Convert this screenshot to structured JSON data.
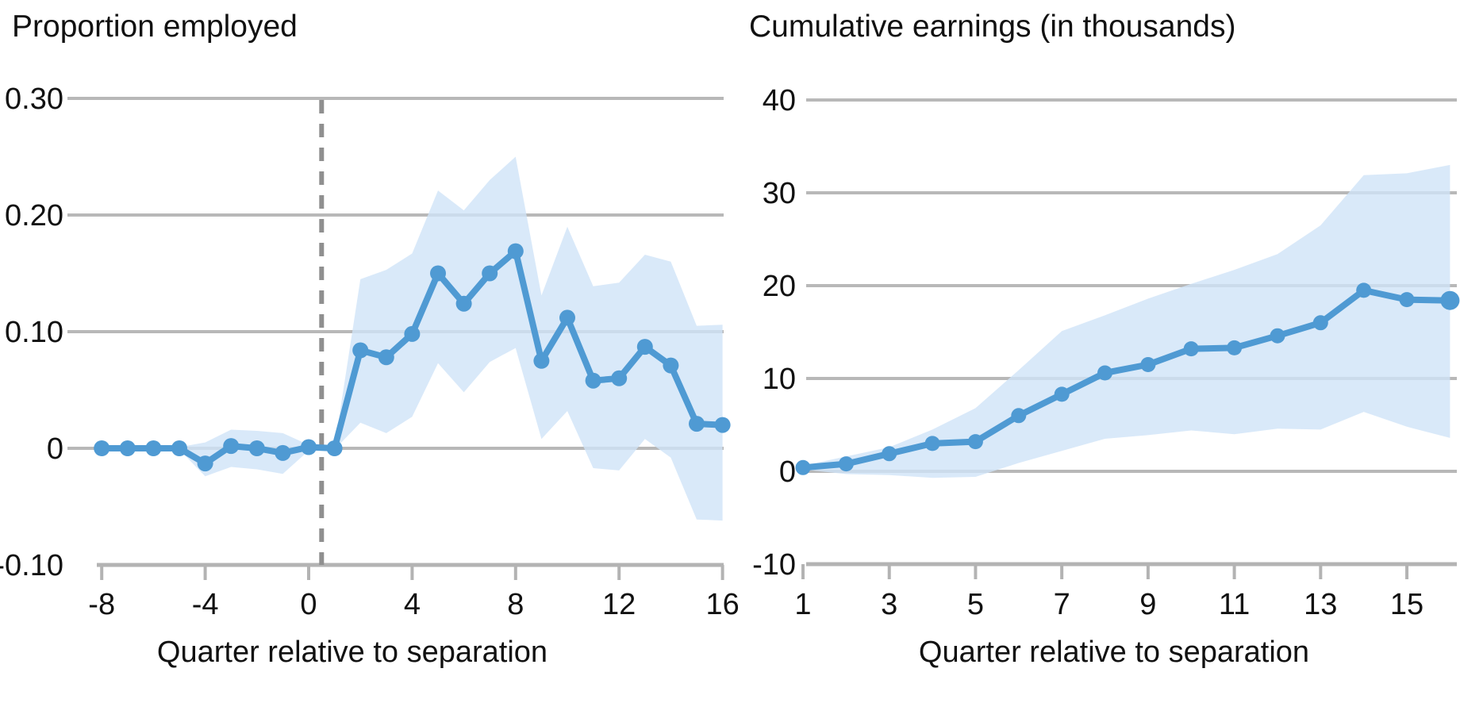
{
  "figure": {
    "background": "#ffffff"
  },
  "colors": {
    "line": "#4f9ad3",
    "marker": "#4f9ad3",
    "band": "#cfe4f7",
    "band_opacity": 0.8,
    "grid": "#b8b8b8",
    "axis": "#b3b3b3",
    "dashed": "#8f8f8f",
    "text": "#111111"
  },
  "chart_data": [
    {
      "type": "line",
      "title": "Proportion employed",
      "xlabel": "Quarter relative to separation",
      "legend": null,
      "grid": true,
      "ylim": [
        -0.1,
        0.3
      ],
      "xlim": [
        -9.3,
        16.1
      ],
      "x": [
        -8,
        -7,
        -6,
        -5,
        -4,
        -3,
        -2,
        -1,
        0,
        1,
        2,
        3,
        4,
        5,
        6,
        7,
        8,
        9,
        10,
        11,
        12,
        13,
        14,
        15,
        16
      ],
      "line": [
        0.0,
        0.0,
        0.0,
        0.0,
        -0.013,
        0.002,
        0.0,
        -0.004,
        0.001,
        0.0,
        0.084,
        0.078,
        0.098,
        0.15,
        0.124,
        0.15,
        0.169,
        0.075,
        0.112,
        0.058,
        0.06,
        0.087,
        0.071,
        0.021,
        0.02
      ],
      "band_upper": [
        0.0,
        0.0,
        0.0,
        0.001,
        0.005,
        0.016,
        0.015,
        0.013,
        0.003,
        0.001,
        0.145,
        0.153,
        0.167,
        0.221,
        0.204,
        0.23,
        0.25,
        0.131,
        0.19,
        0.139,
        0.142,
        0.166,
        0.16,
        0.105,
        0.106
      ],
      "band_lower": [
        0.0,
        0.0,
        0.0,
        -0.001,
        -0.024,
        -0.016,
        -0.018,
        -0.022,
        -0.002,
        -0.001,
        0.022,
        0.013,
        0.027,
        0.073,
        0.048,
        0.074,
        0.086,
        0.008,
        0.032,
        -0.017,
        -0.019,
        0.008,
        -0.008,
        -0.061,
        -0.062
      ],
      "vline_at": 0.5,
      "yticks": [
        {
          "v": 0.3,
          "label": "0.30"
        },
        {
          "v": 0.2,
          "label": "0.20"
        },
        {
          "v": 0.1,
          "label": "0.10"
        },
        {
          "v": 0.0,
          "label": "0"
        },
        {
          "v": -0.1,
          "label": "-0.10"
        }
      ],
      "xticks": [
        {
          "q": -8,
          "label": "-8"
        },
        {
          "q": -4,
          "label": "-4"
        },
        {
          "q": 0,
          "label": "0"
        },
        {
          "q": 4,
          "label": "4"
        },
        {
          "q": 8,
          "label": "8"
        },
        {
          "q": 12,
          "label": "12"
        },
        {
          "q": 16,
          "label": "16"
        }
      ]
    },
    {
      "type": "line",
      "title": "Cumulative earnings (in thousands)",
      "xlabel": "Quarter relative to separation",
      "legend": null,
      "grid": true,
      "ylim": [
        -10,
        40
      ],
      "xlim": [
        0.9,
        16.2
      ],
      "x": [
        1,
        2,
        3,
        4,
        5,
        6,
        7,
        8,
        9,
        10,
        11,
        12,
        13,
        14,
        15,
        16
      ],
      "line": [
        0.4,
        0.8,
        1.9,
        3.0,
        3.2,
        6.0,
        8.3,
        10.6,
        11.5,
        13.2,
        13.3,
        14.6,
        16.0,
        19.5,
        18.5,
        18.4
      ],
      "band_upper": [
        0.6,
        1.6,
        2.6,
        4.5,
        6.8,
        10.9,
        15.1,
        16.8,
        18.6,
        20.2,
        21.7,
        23.4,
        26.5,
        31.9,
        32.1,
        33.0
      ],
      "band_lower": [
        0.2,
        -0.3,
        -0.4,
        -0.7,
        -0.6,
        0.9,
        2.2,
        3.5,
        3.9,
        4.4,
        4.0,
        4.6,
        4.5,
        6.4,
        4.8,
        3.6
      ],
      "vline_at": null,
      "yticks": [
        {
          "v": 40,
          "label": "40"
        },
        {
          "v": 30,
          "label": "30"
        },
        {
          "v": 20,
          "label": "20"
        },
        {
          "v": 10,
          "label": "10"
        },
        {
          "v": 0,
          "label": "0"
        },
        {
          "v": -10,
          "label": "-10"
        }
      ],
      "xticks": [
        {
          "q": 1,
          "label": "1"
        },
        {
          "q": 3,
          "label": "3"
        },
        {
          "q": 5,
          "label": "5"
        },
        {
          "q": 7,
          "label": "7"
        },
        {
          "q": 9,
          "label": "9"
        },
        {
          "q": 11,
          "label": "11"
        },
        {
          "q": 13,
          "label": "13"
        },
        {
          "q": 15,
          "label": "15"
        }
      ]
    }
  ]
}
